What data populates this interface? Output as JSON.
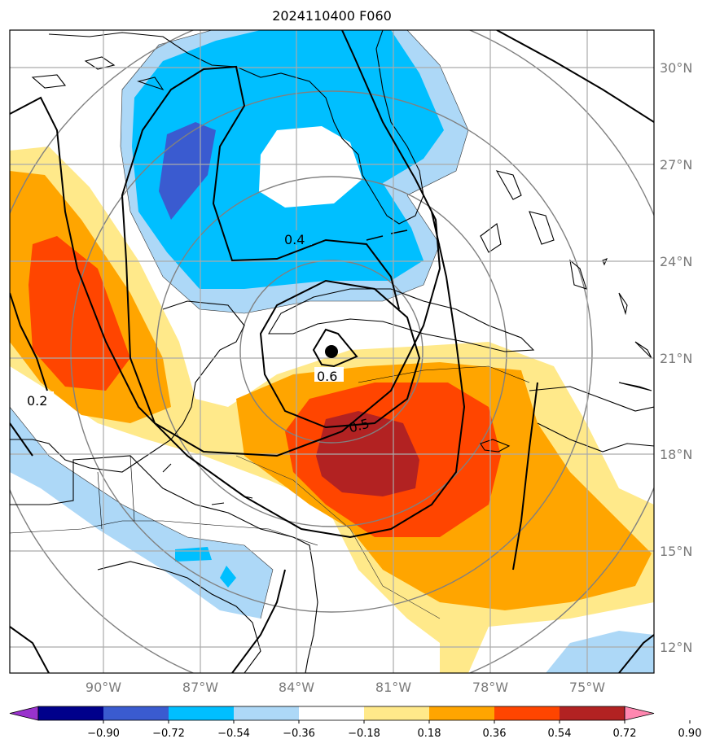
{
  "title": "2024110400 F060",
  "latitudes": [
    "30°N",
    "27°N",
    "24°N",
    "21°N",
    "18°N",
    "15°N",
    "12°N"
  ],
  "longitudes": [
    "90°W",
    "87°W",
    "84°W",
    "81°W",
    "78°W",
    "75°W"
  ],
  "colorbar": {
    "ticks": [
      "−0.90",
      "−0.72",
      "−0.54",
      "−0.36",
      "−0.18",
      "0.18",
      "0.36",
      "0.54",
      "0.72",
      "0.90"
    ],
    "colors": [
      "#9932cc",
      "#00008b",
      "#3a5bd0",
      "#00bfff",
      "#add8f7",
      "#ffffff",
      "#ffe98a",
      "#ffa500",
      "#ff4500",
      "#b22222",
      "#ff87b0"
    ]
  },
  "contour_labels": [
    "0.4",
    "0.6",
    "0.5",
    "0.2"
  ],
  "colors": {
    "grid": "#aaaaaa",
    "range_rings": "#808080",
    "coastline": "#000000",
    "contour": "#000000"
  }
}
